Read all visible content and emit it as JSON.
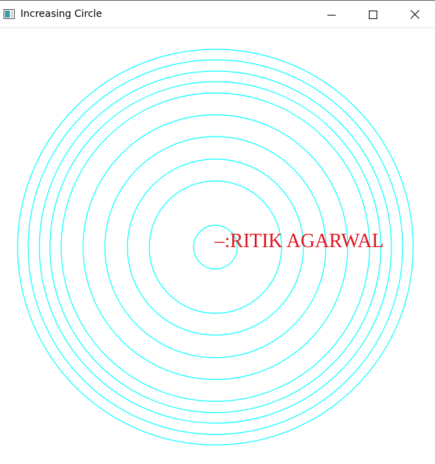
{
  "window": {
    "title": "Increasing Circle",
    "controls": {
      "minimize_icon": "minimize-icon",
      "maximize_icon": "maximize-icon",
      "close_icon": "close-icon"
    }
  },
  "canvas": {
    "circle_color": "#00ffff",
    "circle_count": 12,
    "label": {
      "text": "–:RITIK AGARWAL",
      "color": "#e0141e"
    }
  }
}
